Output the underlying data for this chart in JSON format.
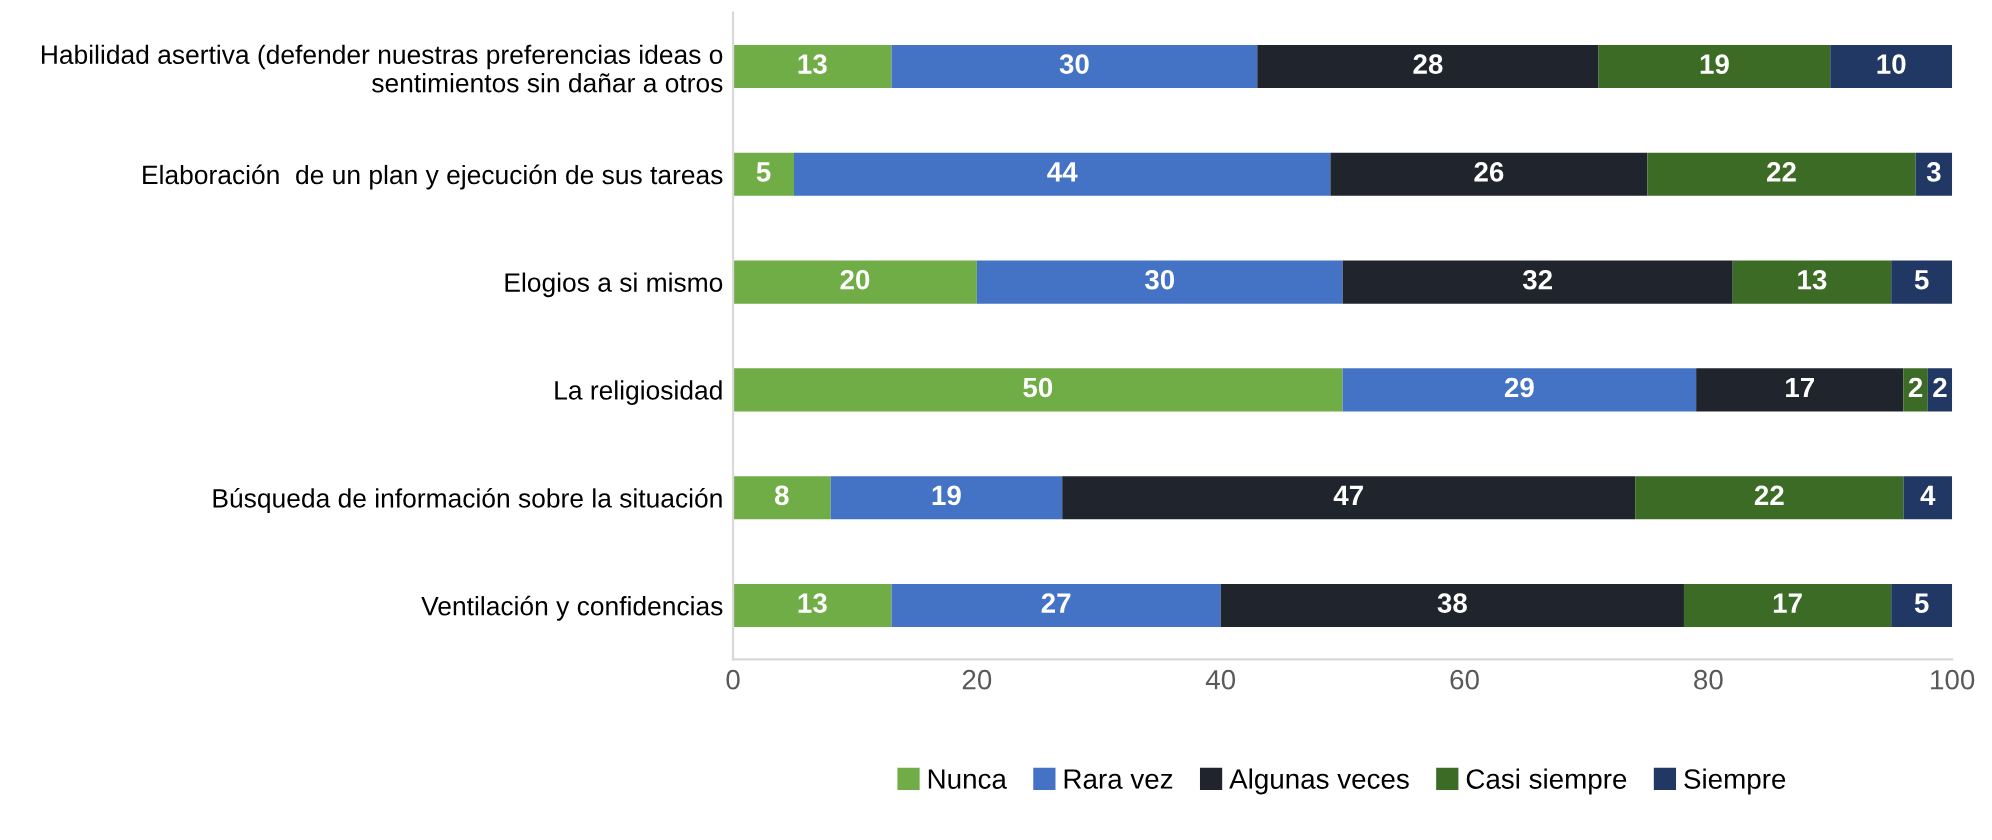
{
  "chart_data": {
    "type": "bar",
    "orientation": "horizontal",
    "stacked": true,
    "data_labels": true,
    "grid": false,
    "legend": "bottom",
    "categories": [
      "Habilidad asertiva (defender nuestras preferencias ideas o\nsentimientos sin dañar a otros",
      "Elaboración  de un plan y ejecución de sus tareas",
      "Elogios a si mismo",
      "La religiosidad",
      "Búsqueda de información sobre la situación",
      "Ventilación y confidencias"
    ],
    "series": [
      {
        "name": "Nunca",
        "color": "#70ad47",
        "values": [
          13,
          5,
          20,
          50,
          8,
          13
        ]
      },
      {
        "name": "Rara vez",
        "color": "#4472c4",
        "values": [
          30,
          44,
          30,
          29,
          19,
          27
        ]
      },
      {
        "name": "Algunas veces",
        "color": "#20242c",
        "values": [
          28,
          26,
          32,
          17,
          47,
          38
        ]
      },
      {
        "name": "Casi siempre",
        "color": "#3b6b25",
        "values": [
          19,
          22,
          13,
          2,
          22,
          17
        ]
      },
      {
        "name": "Siempre",
        "color": "#213864",
        "values": [
          10,
          3,
          5,
          2,
          4,
          5
        ]
      }
    ],
    "xlim": [
      0,
      100
    ],
    "xticks": [
      0,
      20,
      40,
      60,
      80,
      100
    ]
  }
}
